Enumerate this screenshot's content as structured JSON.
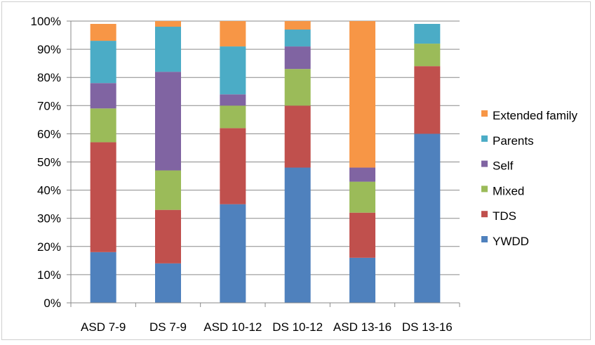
{
  "chart_data": {
    "type": "bar",
    "stacked": true,
    "categories": [
      "ASD 7-9",
      "DS 7-9",
      "ASD 10-12",
      "DS 10-12",
      "ASD 13-16",
      "DS 13-16"
    ],
    "series": [
      {
        "name": "YWDD",
        "color": "#4f81bd",
        "values": [
          18,
          14,
          35,
          48,
          16,
          60
        ]
      },
      {
        "name": "TDS",
        "color": "#c0504d",
        "values": [
          39,
          19,
          27,
          22,
          16,
          24
        ]
      },
      {
        "name": "Mixed",
        "color": "#9bbb59",
        "values": [
          12,
          14,
          8,
          13,
          11,
          8
        ]
      },
      {
        "name": "Self",
        "color": "#8064a2",
        "values": [
          9,
          35,
          4,
          8,
          5,
          0
        ]
      },
      {
        "name": "Parents",
        "color": "#4bacc6",
        "values": [
          15,
          16,
          17,
          6,
          0,
          7
        ]
      },
      {
        "name": "Extended family",
        "color": "#f79646",
        "values": [
          6,
          2,
          9,
          3,
          52,
          0
        ]
      }
    ],
    "yticks": [
      "0%",
      "10%",
      "20%",
      "30%",
      "40%",
      "50%",
      "60%",
      "70%",
      "80%",
      "90%",
      "100%"
    ],
    "ylim": [
      0,
      100
    ],
    "grid": true,
    "legend_position": "right",
    "legend_order": [
      "Extended family",
      "Parents",
      "Self",
      "Mixed",
      "TDS",
      "YWDD"
    ]
  }
}
